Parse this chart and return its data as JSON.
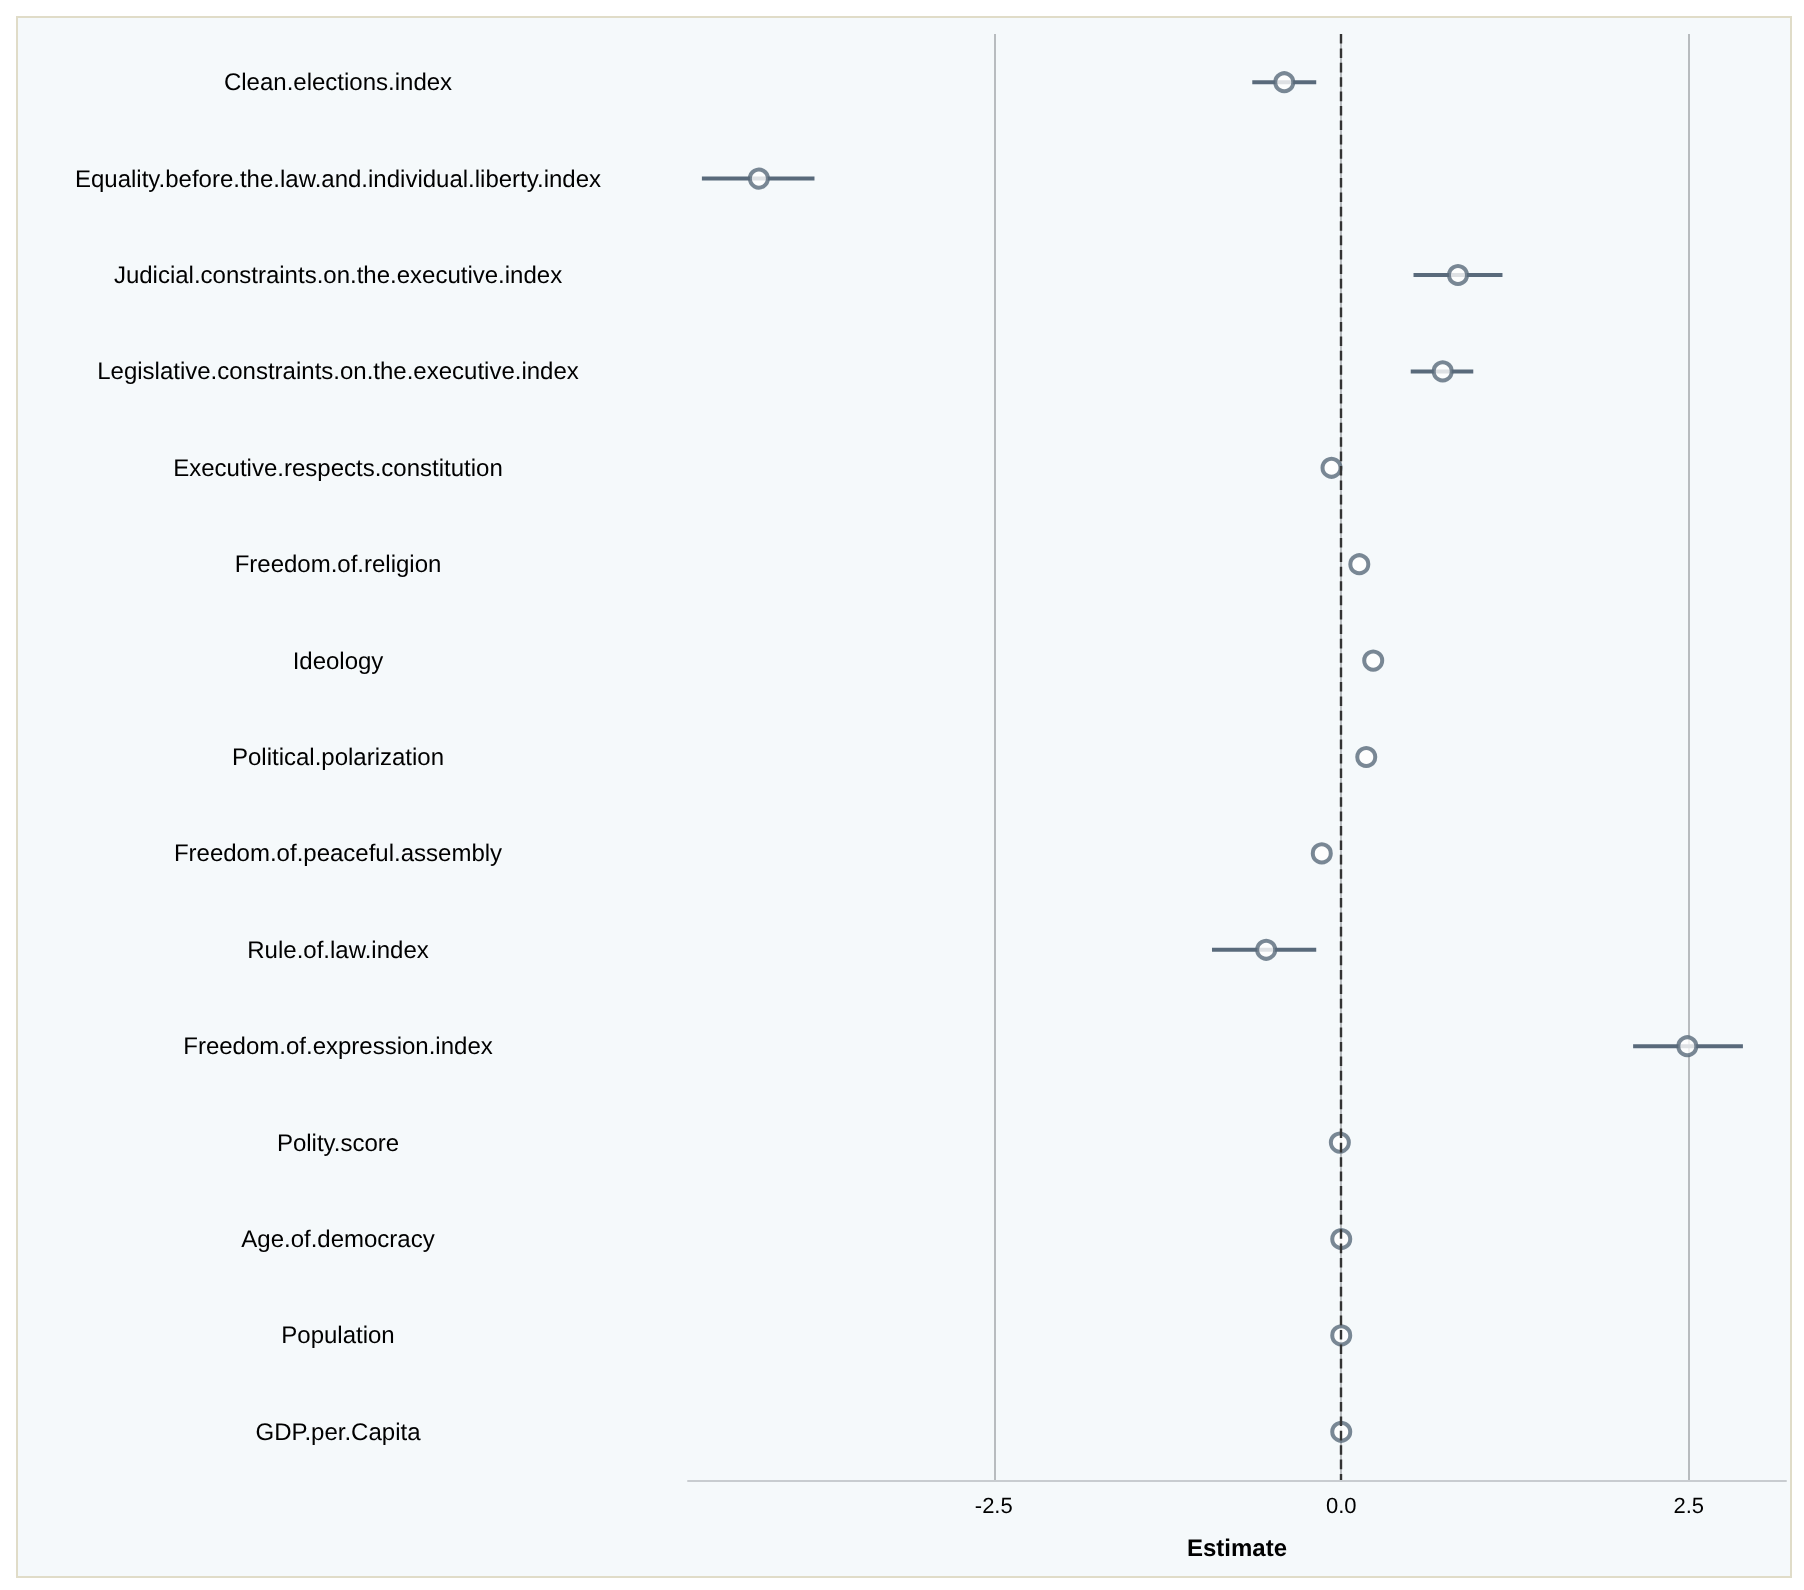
{
  "chart_data": {
    "type": "scatter",
    "orientation": "horizontal",
    "xlabel": "Estimate",
    "categories": [
      "Clean.elections.index",
      "Equality.before.the.law.and.individual.liberty.index",
      "Judicial.constraints.on.the.executive.index",
      "Legislative.constraints.on.the.executive.index",
      "Executive.respects.constitution",
      "Freedom.of.religion",
      "Ideology",
      "Political.polarization",
      "Freedom.of.peaceful.assembly",
      "Rule.of.law.index",
      "Freedom.of.expression.index",
      "Polity.score",
      "Age.of.democracy",
      "Population",
      "GDP.per.Capita"
    ],
    "series": [
      {
        "color": "#596a7b",
        "values": [
          -0.41,
          -4.19,
          0.84,
          0.73,
          -0.07,
          0.13,
          0.23,
          0.18,
          -0.14,
          -0.54,
          2.49,
          -0.01,
          0,
          0,
          0
        ],
        "errors": [
          [
            -0.64,
            -0.18
          ],
          [
            -4.6,
            -3.79
          ],
          [
            0.52,
            1.16
          ],
          [
            0.5,
            0.95
          ],
          null,
          null,
          null,
          null,
          null,
          [
            -0.93,
            -0.18
          ],
          [
            2.1,
            2.89
          ],
          null,
          null,
          null,
          null
        ]
      }
    ],
    "xlim": [
      -4.7,
      3.2
    ],
    "xticks": [
      -2.5,
      {
        "value": 0,
        "label": "0.0"
      },
      2.5
    ],
    "grid": "x",
    "marker": "circle",
    "ref_lines": [
      {
        "axis": "x",
        "value": 0,
        "color": "#333333",
        "line_style": "dashed"
      }
    ]
  }
}
